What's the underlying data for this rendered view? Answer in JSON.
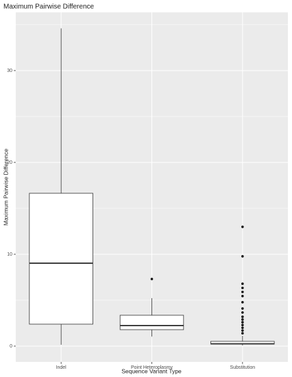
{
  "chart_data": {
    "type": "box",
    "title": "Maximum Pairwise Difference",
    "x_label": "Sequence Variant Type",
    "y_label": "Maximum Pairwise Difference",
    "categories": [
      "Indel",
      "Point Heteroplasmy",
      "Substitution"
    ],
    "boxes": [
      {
        "low": 0.15,
        "q1": 2.39,
        "median": 9.03,
        "q3": 16.64,
        "high": 34.6,
        "outliers": []
      },
      {
        "low": 1.04,
        "q1": 1.79,
        "median": 2.24,
        "q3": 3.36,
        "high": 5.22,
        "outliers": [
          7.31
        ]
      },
      {
        "low": 0.07,
        "q1": 0.22,
        "median": 0.26,
        "q3": 0.52,
        "high": 1.12,
        "outliers": [
          12.99,
          9.78,
          6.79,
          6.34,
          5.9,
          5.45,
          4.78,
          4.1,
          3.66,
          3.2,
          2.9,
          2.6,
          2.3,
          2.0,
          1.7,
          1.4
        ]
      }
    ],
    "box_fill": "#ffffff",
    "box_stroke": "#333333",
    "panel_color": "#ebebeb",
    "grid_color": "#ffffff",
    "ylim": [
      -1.72,
      36.34
    ],
    "yticks": [
      0,
      10,
      20,
      30
    ],
    "grid": true,
    "minor_grid": true
  }
}
